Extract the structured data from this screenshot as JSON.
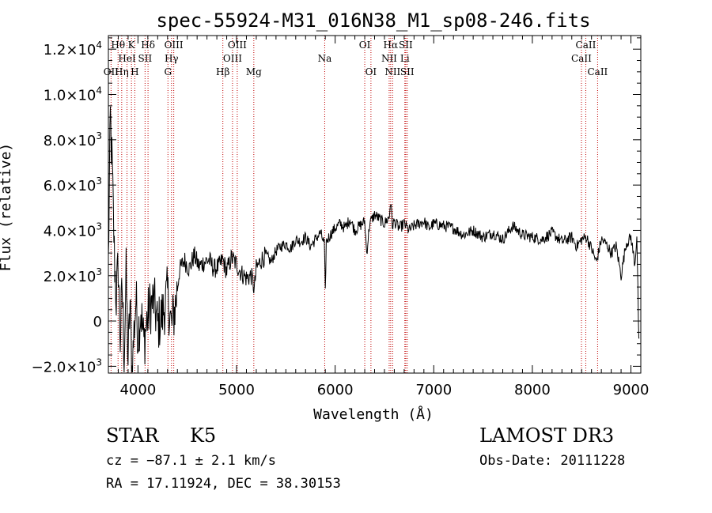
{
  "chart_data": {
    "type": "line",
    "title": "spec-55924-M31_016N38_M1_sp08-246.fits",
    "xlabel": "Wavelength (Å)",
    "ylabel": "Flux (relative)",
    "xlim": [
      3700,
      9100
    ],
    "ylim": [
      -2300,
      12600
    ],
    "x_ticks": [
      {
        "value": 4000,
        "label": "4000"
      },
      {
        "value": 5000,
        "label": "5000"
      },
      {
        "value": 6000,
        "label": "6000"
      },
      {
        "value": 7000,
        "label": "7000"
      },
      {
        "value": 8000,
        "label": "8000"
      },
      {
        "value": 9000,
        "label": "9000"
      }
    ],
    "y_ticks": [
      {
        "value": -2000,
        "mant": "−2.0×10",
        "exp": "3"
      },
      {
        "value": 0,
        "mant": "0",
        "exp": ""
      },
      {
        "value": 2000,
        "mant": "2.0×10",
        "exp": "3"
      },
      {
        "value": 4000,
        "mant": "4.0×10",
        "exp": "3"
      },
      {
        "value": 6000,
        "mant": "6.0×10",
        "exp": "3"
      },
      {
        "value": 8000,
        "mant": "8.0×10",
        "exp": "3"
      },
      {
        "value": 10000,
        "mant": "1.0×10",
        "exp": "4"
      },
      {
        "value": 12000,
        "mant": "1.2×10",
        "exp": "4"
      }
    ],
    "spectrum": {
      "name": "flux",
      "x": [
        3700,
        3720,
        3740,
        3760,
        3780,
        3800,
        3820,
        3840,
        3860,
        3880,
        3900,
        3920,
        3940,
        3960,
        3980,
        4000,
        4030,
        4060,
        4090,
        4120,
        4160,
        4200,
        4250,
        4300,
        4340,
        4380,
        4420,
        4470,
        4520,
        4570,
        4620,
        4670,
        4720,
        4770,
        4820,
        4860,
        4900,
        4950,
        5000,
        5050,
        5100,
        5150,
        5180,
        5200,
        5250,
        5300,
        5350,
        5400,
        5450,
        5500,
        5550,
        5600,
        5650,
        5700,
        5750,
        5800,
        5850,
        5890,
        5900,
        5910,
        5950,
        6000,
        6050,
        6100,
        6150,
        6200,
        6250,
        6300,
        6320,
        6350,
        6400,
        6450,
        6500,
        6550,
        6563,
        6580,
        6600,
        6650,
        6700,
        6750,
        6800,
        6850,
        6900,
        6950,
        7000,
        7100,
        7200,
        7300,
        7400,
        7500,
        7600,
        7700,
        7800,
        7900,
        8000,
        8100,
        8200,
        8300,
        8400,
        8450,
        8500,
        8550,
        8600,
        8650,
        8700,
        8750,
        8800,
        8850,
        8900,
        8950,
        9000,
        9040,
        9060,
        9080
      ],
      "y": [
        2500,
        9000,
        6500,
        3000,
        1000,
        2500,
        -800,
        1500,
        -1500,
        2000,
        -1800,
        800,
        -2200,
        -500,
        1000,
        -600,
        500,
        -1000,
        0,
        600,
        900,
        -200,
        300,
        1200,
        -300,
        700,
        2200,
        2700,
        2300,
        2900,
        2400,
        2600,
        2700,
        2300,
        2400,
        2700,
        2200,
        2800,
        2500,
        2100,
        1900,
        2000,
        1400,
        2300,
        2700,
        2900,
        2600,
        3100,
        3300,
        3400,
        3200,
        3600,
        3500,
        3700,
        3300,
        3600,
        3900,
        3400,
        1200,
        3500,
        3800,
        4100,
        4300,
        4100,
        4500,
        4000,
        4200,
        4400,
        3000,
        4300,
        4700,
        4500,
        4300,
        4600,
        5400,
        4200,
        4400,
        4100,
        4300,
        4000,
        4200,
        4300,
        4400,
        4100,
        4300,
        4200,
        4100,
        3800,
        4000,
        3700,
        3900,
        3600,
        4200,
        3800,
        3700,
        3600,
        3900,
        3500,
        3700,
        3300,
        3600,
        3700,
        3200,
        2600,
        3600,
        3400,
        3000,
        3300,
        2000,
        3400,
        3700,
        2500,
        3800,
        -1000
      ]
    },
    "spectral_lines": [
      {
        "label": "OII",
        "wavelength": 3727,
        "row": 2
      },
      {
        "label": "Hθ",
        "wavelength": 3798,
        "row": 0
      },
      {
        "label": "Hη",
        "wavelength": 3835,
        "row": 2
      },
      {
        "label": "HeI",
        "wavelength": 3889,
        "row": 1
      },
      {
        "label": "K",
        "wavelength": 3934,
        "row": 0
      },
      {
        "label": "H",
        "wavelength": 3968,
        "row": 2
      },
      {
        "label": "SII",
        "wavelength": 4072,
        "row": 1
      },
      {
        "label": "Hδ",
        "wavelength": 4102,
        "row": 0
      },
      {
        "label": "G",
        "wavelength": 4304,
        "row": 2
      },
      {
        "label": "Hγ",
        "wavelength": 4340,
        "row": 1
      },
      {
        "label": "OIII",
        "wavelength": 4363,
        "row": 0
      },
      {
        "label": "Hβ",
        "wavelength": 4861,
        "row": 2
      },
      {
        "label": "OIII",
        "wavelength": 4959,
        "row": 1
      },
      {
        "label": "OIII",
        "wavelength": 5007,
        "row": 0
      },
      {
        "label": "Mg",
        "wavelength": 5175,
        "row": 2
      },
      {
        "label": "Na",
        "wavelength": 5894,
        "row": 1
      },
      {
        "label": "OI",
        "wavelength": 6300,
        "row": 0
      },
      {
        "label": "OI",
        "wavelength": 6363,
        "row": 2
      },
      {
        "label": "NII",
        "wavelength": 6548,
        "row": 1
      },
      {
        "label": "Hα",
        "wavelength": 6563,
        "row": 0
      },
      {
        "label": "NII",
        "wavelength": 6583,
        "row": 2
      },
      {
        "label": "Li",
        "wavelength": 6707,
        "row": 1
      },
      {
        "label": "SII",
        "wavelength": 6716,
        "row": 0
      },
      {
        "label": "SII",
        "wavelength": 6731,
        "row": 2
      },
      {
        "label": "CaII",
        "wavelength": 8498,
        "row": 1
      },
      {
        "label": "CaII",
        "wavelength": 8542,
        "row": 0
      },
      {
        "label": "CaII",
        "wavelength": 8662,
        "row": 2
      }
    ]
  },
  "info": {
    "object_class": "STAR",
    "subclass": "K5",
    "survey": "LAMOST DR3",
    "cz": "cz = −87.1 ± 2.1 km/s",
    "obs_date": "Obs-Date: 20111228",
    "coords": "RA =  17.11924, DEC =  38.30153"
  }
}
